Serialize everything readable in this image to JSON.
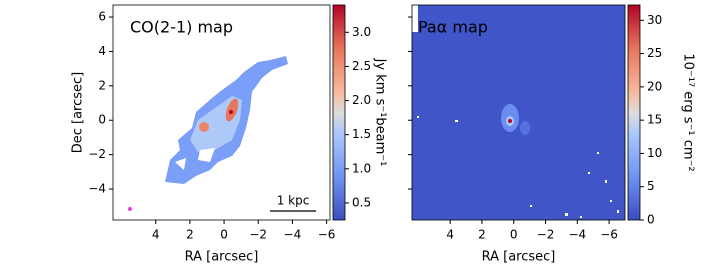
{
  "chart_data": [
    {
      "type": "image",
      "title": "CO(2-1) map",
      "xlabel": "RA [arcsec]",
      "ylabel": "Dec [arcsec]",
      "xlim": [
        6.5,
        -6.2
      ],
      "ylim": [
        -5.8,
        6.7
      ],
      "xticks": [
        4,
        2,
        0,
        {
          "value": -2,
          "label": "−2"
        },
        {
          "value": -4,
          "label": "−4"
        },
        {
          "value": -6,
          "label": "−6"
        }
      ],
      "yticks": [
        {
          "value": -4,
          "label": "−4"
        },
        {
          "value": -2,
          "label": "−2"
        },
        0,
        2,
        4,
        6
      ],
      "ytick_labels": true,
      "annotation": "1 kpc",
      "colorbar": {
        "label": "Jy km s⁻¹beam⁻¹",
        "colormap": "coolwarm",
        "clim": [
          0.25,
          3.4
        ],
        "ticks": [
          0.5,
          {
            "value": 1.0,
            "label": "1.0"
          },
          1.5,
          {
            "value": 2.0,
            "label": "2.0"
          },
          2.5,
          {
            "value": 3.0,
            "label": "3.0"
          }
        ]
      }
    },
    {
      "type": "image",
      "title": "Paα map",
      "xlabel": "RA [arcsec]",
      "xlim": [
        6.4,
        -7.0
      ],
      "ylim": [
        -5.8,
        6.7
      ],
      "xticks": [
        4,
        2,
        0,
        {
          "value": -2,
          "label": "−2"
        },
        {
          "value": -4,
          "label": "−4"
        },
        {
          "value": -6,
          "label": "−6"
        }
      ],
      "yticks": [
        -4,
        -2,
        0,
        2,
        4,
        6
      ],
      "ytick_labels": false,
      "colorbar": {
        "label": "10⁻¹⁷ erg s⁻¹ cm⁻²",
        "colormap": "coolwarm",
        "clim": [
          0,
          32.3
        ],
        "ticks": [
          0,
          5,
          10,
          15,
          20,
          25,
          30
        ]
      }
    }
  ]
}
